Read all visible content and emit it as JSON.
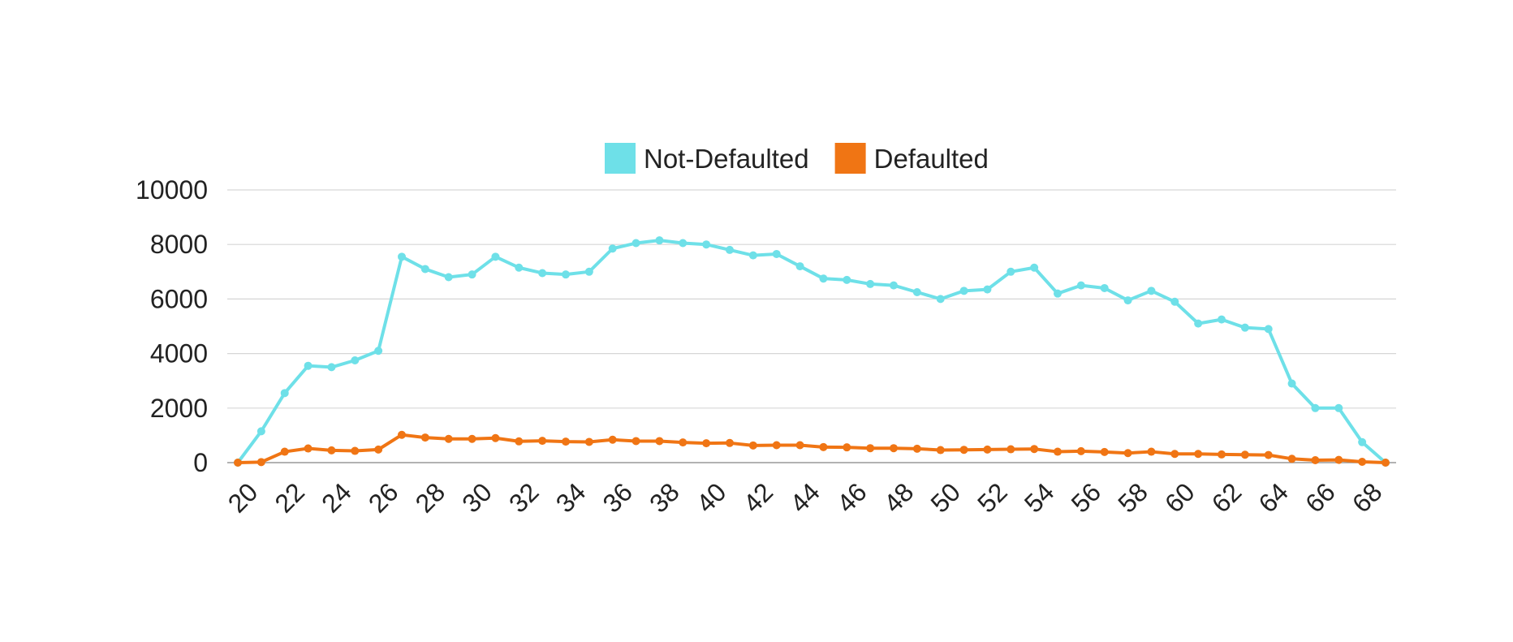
{
  "chart_data": {
    "type": "line",
    "title": "",
    "xlabel": "",
    "ylabel": "",
    "x": [
      20,
      21,
      22,
      23,
      24,
      25,
      26,
      27,
      28,
      29,
      30,
      31,
      32,
      33,
      34,
      35,
      36,
      37,
      38,
      39,
      40,
      41,
      42,
      43,
      44,
      45,
      46,
      47,
      48,
      49,
      50,
      51,
      52,
      53,
      54,
      55,
      56,
      57,
      58,
      59,
      60,
      61,
      62,
      63,
      64,
      65,
      66,
      67,
      68,
      69
    ],
    "x_tick_labels": [
      "20",
      "22",
      "24",
      "26",
      "28",
      "30",
      "32",
      "34",
      "36",
      "38",
      "40",
      "42",
      "44",
      "46",
      "48",
      "50",
      "52",
      "54",
      "56",
      "58",
      "60",
      "62",
      "64",
      "66",
      "68"
    ],
    "y_tick_labels": [
      "0",
      "2000",
      "4000",
      "6000",
      "8000",
      "10000"
    ],
    "ylim": [
      0,
      10000
    ],
    "grid": true,
    "legend_position": "top-center",
    "series": [
      {
        "name": "Not-Defaulted",
        "color": "#6ee0e8",
        "values": [
          0,
          1150,
          2550,
          3550,
          3500,
          3750,
          4100,
          7550,
          7100,
          6800,
          6900,
          7550,
          7150,
          6950,
          6900,
          7000,
          7850,
          8050,
          8150,
          8050,
          8000,
          7800,
          7600,
          7650,
          7200,
          6750,
          6700,
          6550,
          6500,
          6250,
          6000,
          6300,
          6350,
          7000,
          7150,
          6200,
          6500,
          6400,
          5950,
          6300,
          5900,
          5100,
          5250,
          4950,
          4900,
          2900,
          2000,
          2000,
          750,
          0
        ]
      },
      {
        "name": "Defaulted",
        "color": "#f07514",
        "values": [
          0,
          20,
          400,
          520,
          450,
          430,
          480,
          1020,
          920,
          870,
          870,
          900,
          780,
          800,
          770,
          760,
          840,
          790,
          790,
          740,
          710,
          720,
          630,
          640,
          640,
          570,
          560,
          530,
          530,
          510,
          460,
          470,
          480,
          490,
          500,
          400,
          420,
          390,
          350,
          400,
          320,
          320,
          300,
          290,
          280,
          140,
          90,
          100,
          30,
          0
        ]
      }
    ]
  }
}
